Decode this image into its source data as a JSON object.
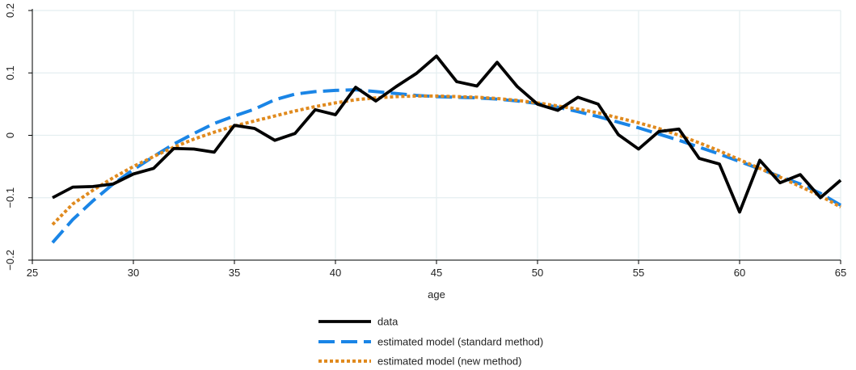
{
  "chart_data": {
    "type": "line",
    "title": "",
    "xlabel": "age",
    "ylabel": "",
    "xlim": [
      25,
      65
    ],
    "ylim": [
      -0.2,
      0.2
    ],
    "x_ticks": [
      25,
      30,
      35,
      40,
      45,
      50,
      55,
      60,
      65
    ],
    "y_ticks": [
      -0.2,
      -0.1,
      0,
      0.1,
      0.2
    ],
    "x_tick_labels": [
      "25",
      "30",
      "35",
      "40",
      "45",
      "50",
      "55",
      "60",
      "65"
    ],
    "y_tick_labels": [
      "−0.2",
      "−0.1",
      "0",
      "0.1",
      "0.2"
    ],
    "grid": true,
    "legend_position": "bottom",
    "x": [
      26,
      27,
      28,
      29,
      30,
      31,
      32,
      33,
      34,
      35,
      36,
      37,
      38,
      39,
      40,
      41,
      42,
      43,
      44,
      45,
      46,
      47,
      48,
      49,
      50,
      51,
      52,
      53,
      54,
      55,
      56,
      57,
      58,
      59,
      60,
      61,
      62,
      63,
      64,
      65
    ],
    "series": [
      {
        "name": "data",
        "color": "#000000",
        "style": "solid",
        "values": [
          -0.1,
          -0.083,
          -0.082,
          -0.078,
          -0.062,
          -0.053,
          -0.021,
          -0.022,
          -0.027,
          0.016,
          0.011,
          -0.008,
          0.003,
          0.041,
          0.033,
          0.077,
          0.055,
          0.078,
          0.099,
          0.127,
          0.086,
          0.079,
          0.117,
          0.078,
          0.05,
          0.04,
          0.061,
          0.05,
          0.001,
          -0.022,
          0.006,
          0.01,
          -0.037,
          -0.046,
          -0.123,
          -0.04,
          -0.076,
          -0.063,
          -0.1,
          -0.072
        ]
      },
      {
        "name": "estimated model (standard method)",
        "color": "#1a85e6",
        "style": "dashed",
        "values": [
          -0.172,
          -0.135,
          -0.105,
          -0.078,
          -0.055,
          -0.034,
          -0.014,
          0.003,
          0.019,
          0.031,
          0.042,
          0.057,
          0.066,
          0.07,
          0.072,
          0.073,
          0.07,
          0.067,
          0.064,
          0.062,
          0.061,
          0.06,
          0.058,
          0.055,
          0.051,
          0.045,
          0.038,
          0.03,
          0.021,
          0.012,
          0.002,
          -0.008,
          -0.019,
          -0.03,
          -0.042,
          -0.054,
          -0.066,
          -0.078,
          -0.093,
          -0.112
        ]
      },
      {
        "name": "estimated model (new method)",
        "color": "#e08a1e",
        "style": "dotted",
        "values": [
          -0.143,
          -0.11,
          -0.088,
          -0.068,
          -0.05,
          -0.034,
          -0.019,
          -0.006,
          0.005,
          0.015,
          0.023,
          0.031,
          0.039,
          0.046,
          0.052,
          0.057,
          0.06,
          0.062,
          0.063,
          0.063,
          0.062,
          0.061,
          0.059,
          0.056,
          0.052,
          0.047,
          0.042,
          0.036,
          0.028,
          0.02,
          0.011,
          0.0,
          -0.012,
          -0.025,
          -0.039,
          -0.053,
          -0.067,
          -0.082,
          -0.097,
          -0.115
        ]
      }
    ]
  }
}
